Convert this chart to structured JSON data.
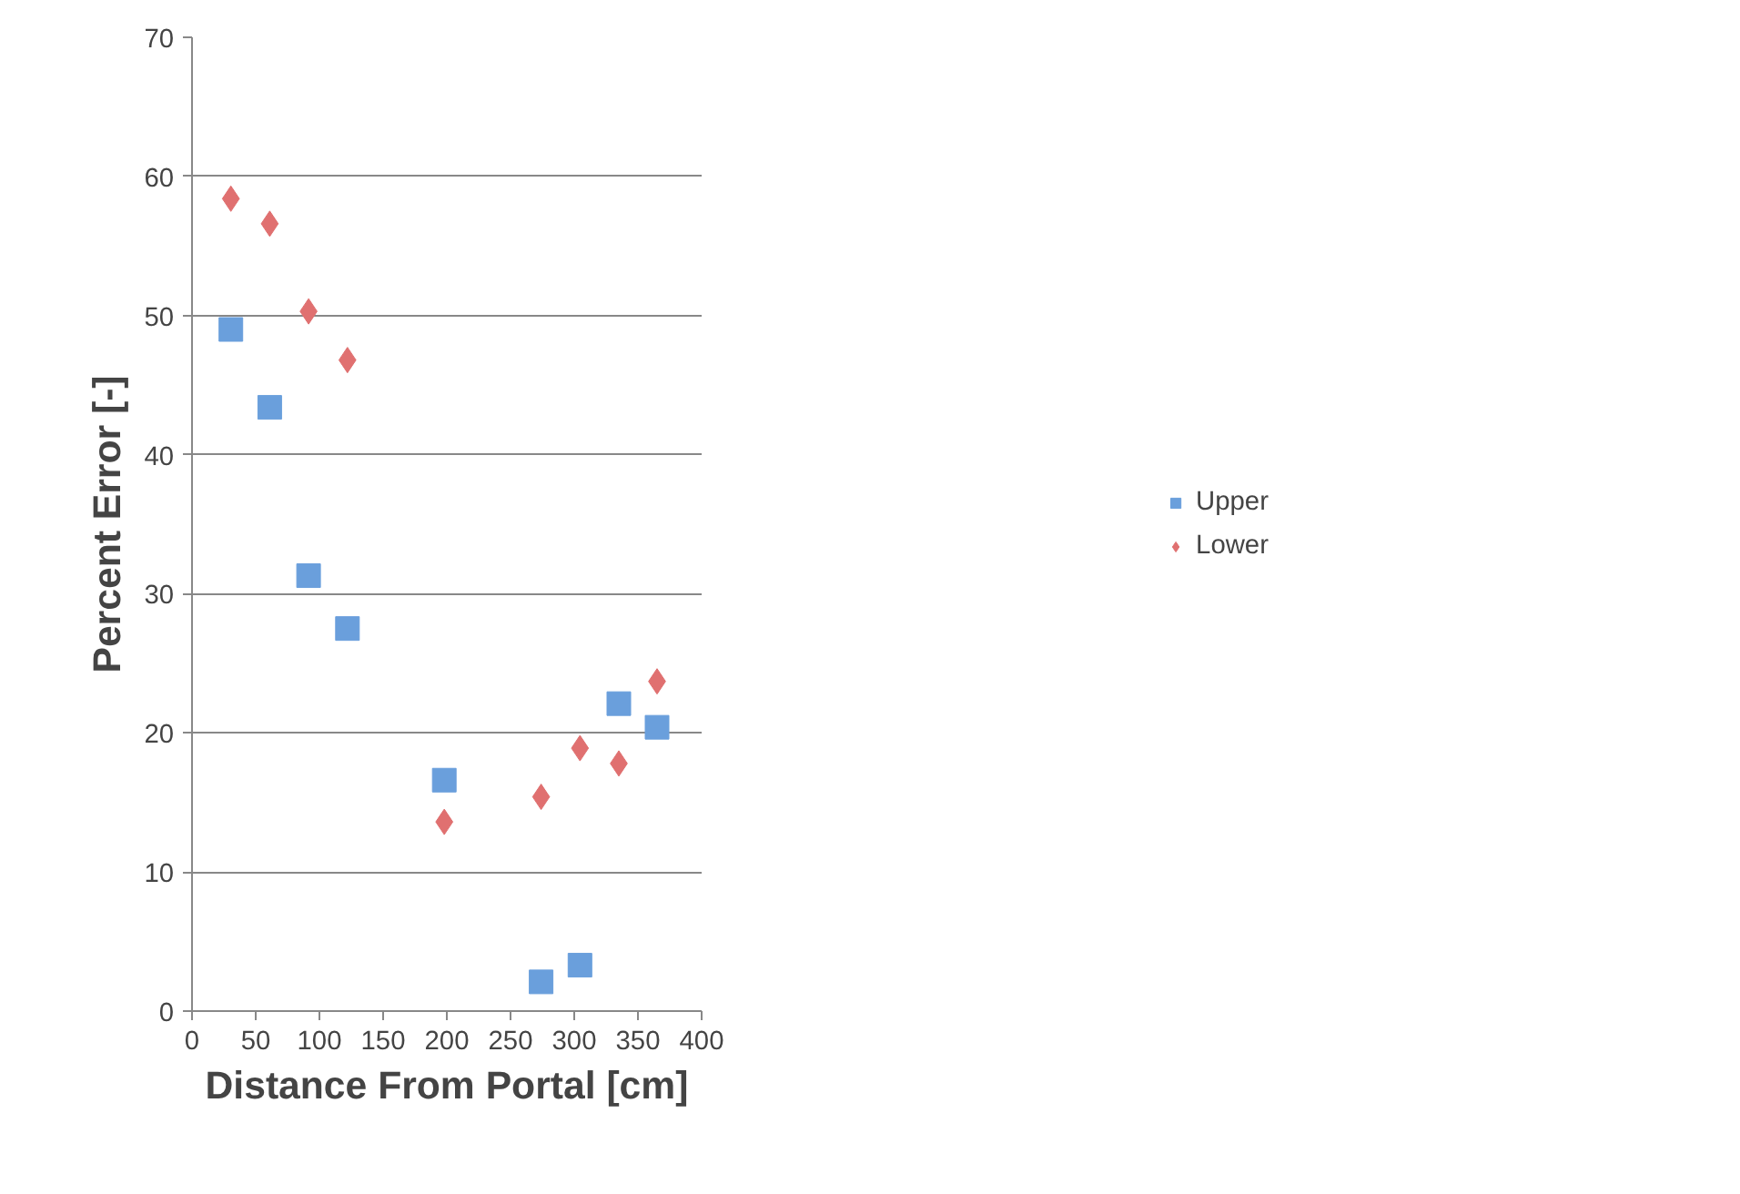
{
  "chart_data": {
    "type": "scatter",
    "xlabel": "Distance From Portal [cm]",
    "ylabel": "Percent Error [-]",
    "xlim": [
      0,
      400
    ],
    "xticks": [
      0,
      50,
      100,
      150,
      200,
      250,
      300,
      350,
      400
    ],
    "ylim": [
      0,
      70
    ],
    "yticks": [
      0,
      10,
      20,
      30,
      40,
      50,
      60,
      70
    ],
    "grid": "y",
    "legend": "right",
    "series": [
      {
        "name": "Upper",
        "color": "#6a9fdc",
        "marker": "square",
        "x": [
          30.5,
          61,
          91.5,
          122,
          198,
          274,
          304.5,
          335,
          365
        ],
        "values": [
          49.0,
          43.4,
          31.3,
          27.5,
          16.6,
          2.1,
          3.3,
          22.1,
          20.4
        ]
      },
      {
        "name": "Lower",
        "color": "#e07070",
        "marker": "diamond",
        "x": [
          30.5,
          61,
          91.5,
          122,
          198,
          274,
          304.5,
          335,
          365
        ],
        "values": [
          58.4,
          56.6,
          50.3,
          46.8,
          13.6,
          15.4,
          18.9,
          17.8,
          23.7
        ]
      }
    ]
  }
}
